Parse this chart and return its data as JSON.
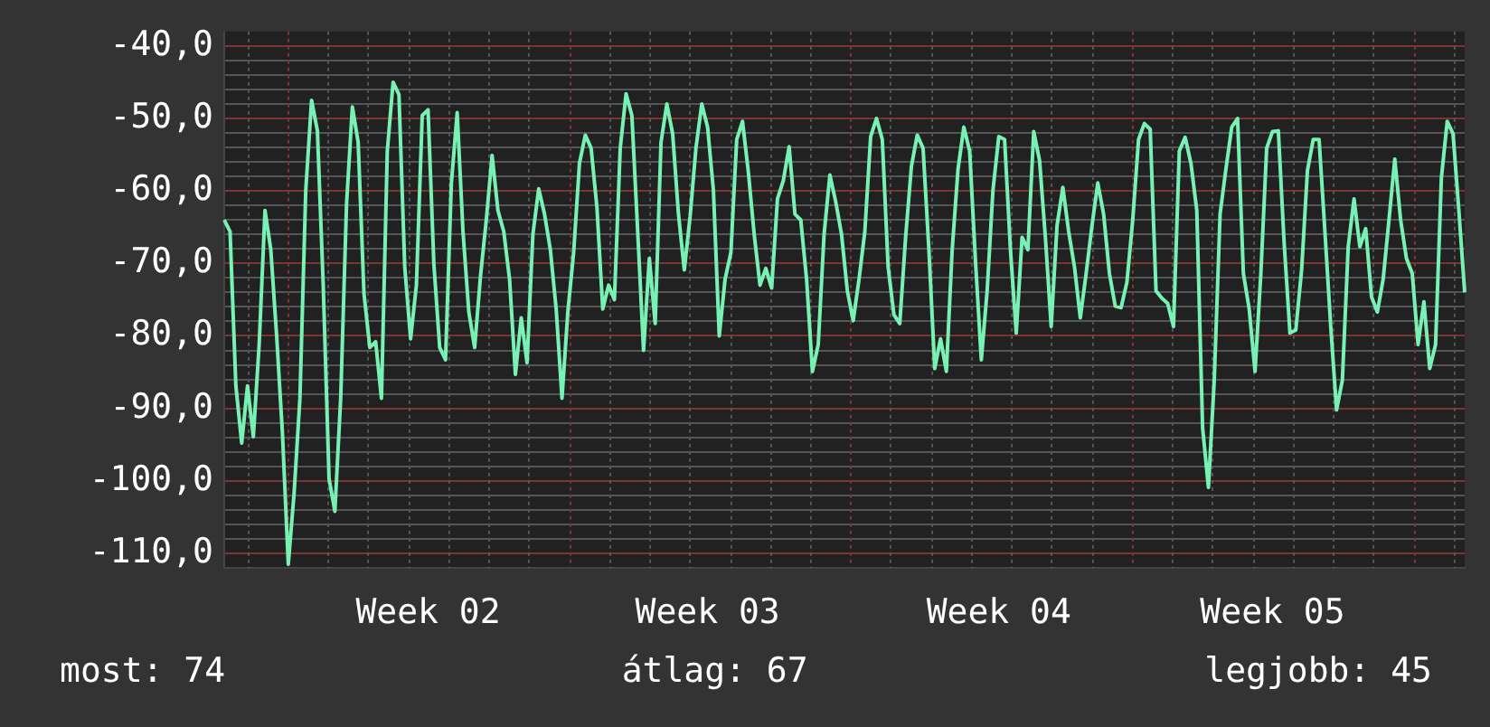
{
  "chart_data": {
    "type": "line",
    "color": "#77f2b4",
    "legend": false,
    "grid": true,
    "marker": "none",
    "line_style": "solid",
    "annotations": [
      "most: 74",
      "átlag: 67",
      "legjobb: 45"
    ],
    "categories": [
      null,
      null,
      null,
      null,
      null,
      null,
      null,
      null,
      null,
      null,
      null,
      null,
      null,
      null,
      null,
      null,
      null,
      null,
      null,
      null,
      null,
      null,
      null,
      null,
      null,
      null,
      null,
      null,
      null,
      null,
      null,
      null,
      null,
      null,
      null,
      "Week 02",
      null,
      null,
      null,
      null,
      null,
      null,
      null,
      null,
      null,
      null,
      null,
      null,
      null,
      null,
      null,
      null,
      null,
      null,
      null,
      null,
      null,
      null,
      null,
      null,
      null,
      null,
      null,
      null,
      null,
      null,
      null,
      null,
      null,
      null,
      null,
      null,
      null,
      null,
      null,
      null,
      null,
      null,
      null,
      null,
      null,
      null,
      null,
      "Week 03",
      null,
      null,
      null,
      null,
      null,
      null,
      null,
      null,
      null,
      null,
      null,
      null,
      null,
      null,
      null,
      null,
      null,
      null,
      null,
      null,
      null,
      null,
      null,
      null,
      null,
      null,
      null,
      null,
      null,
      null,
      null,
      null,
      null,
      null,
      null,
      null,
      null,
      null,
      null,
      null,
      null,
      null,
      null,
      null,
      null,
      null,
      null,
      null,
      null,
      "Week 04",
      null,
      null,
      null,
      null,
      null,
      null,
      null,
      null,
      null,
      null,
      null,
      null,
      null,
      null,
      null,
      null,
      null,
      null,
      null,
      null,
      null,
      null,
      null,
      null,
      null,
      null,
      null,
      null,
      null,
      null,
      null,
      null,
      null,
      null,
      null,
      null,
      null,
      null,
      null,
      null,
      null,
      null,
      null,
      null,
      null,
      null,
      "Week 05",
      null,
      null,
      null,
      null,
      null,
      null,
      null,
      null,
      null,
      null,
      null,
      null,
      null,
      null,
      null,
      null,
      null,
      null,
      null,
      null,
      null,
      null,
      null,
      null,
      null,
      null,
      null,
      null,
      null,
      null,
      null,
      null,
      null
    ],
    "ylim": [
      -112,
      -38
    ],
    "yticks": [
      {
        "value": -40,
        "label": "-40,0"
      },
      {
        "value": -42,
        "label": null
      },
      {
        "value": -44,
        "label": null
      },
      {
        "value": -46,
        "label": null
      },
      {
        "value": -48,
        "label": null
      },
      {
        "value": -50,
        "label": "-50,0"
      },
      {
        "value": -52,
        "label": null
      },
      {
        "value": -54,
        "label": null
      },
      {
        "value": -56,
        "label": null
      },
      {
        "value": -58,
        "label": null
      },
      {
        "value": -60,
        "label": "-60,0"
      },
      {
        "value": -62,
        "label": null
      },
      {
        "value": -64,
        "label": null
      },
      {
        "value": -66,
        "label": null
      },
      {
        "value": -68,
        "label": null
      },
      {
        "value": -70,
        "label": "-70,0"
      },
      {
        "value": -72,
        "label": null
      },
      {
        "value": -74,
        "label": null
      },
      {
        "value": -76,
        "label": null
      },
      {
        "value": -78,
        "label": null
      },
      {
        "value": -80,
        "label": "-80,0"
      },
      {
        "value": -82,
        "label": null
      },
      {
        "value": -84,
        "label": null
      },
      {
        "value": -86,
        "label": null
      },
      {
        "value": -88,
        "label": null
      },
      {
        "value": -90,
        "label": "-90,0"
      },
      {
        "value": -92,
        "label": null
      },
      {
        "value": -94,
        "label": null
      },
      {
        "value": -96,
        "label": null
      },
      {
        "value": -98,
        "label": null
      },
      {
        "value": -100,
        "label": "-100,0"
      },
      {
        "value": -102,
        "label": null
      },
      {
        "value": -104,
        "label": null
      },
      {
        "value": -106,
        "label": null
      },
      {
        "value": -108,
        "label": null
      },
      {
        "value": -110,
        "label": "-110,0"
      }
    ],
    "values": [
      -64,
      -65.6,
      -86.9,
      -94.8,
      -86.9,
      -93.9,
      -81.2,
      -62.7,
      -68.1,
      -80,
      -93.5,
      -111.5,
      -101.7,
      -88.6,
      -59.9,
      -47.5,
      -51.7,
      -73,
      -99.7,
      -104.2,
      -88.6,
      -61.9,
      -48.4,
      -53.3,
      -74.2,
      -81.6,
      -80.8,
      -88.6,
      -54.5,
      -45,
      -46.7,
      -70.5,
      -80.4,
      -73,
      -49.6,
      -48.8,
      -70.1,
      -81.6,
      -83.3,
      -59,
      -49.2,
      -65.6,
      -76.7,
      -81.6,
      -71.8,
      -64,
      -55.1,
      -62.7,
      -65.6,
      -72.2,
      -85.3,
      -77.5,
      -83.7,
      -66,
      -59.7,
      -63.2,
      -68.1,
      -76.3,
      -88.6,
      -76.7,
      -68.5,
      -56.2,
      -52.3,
      -54.1,
      -62.3,
      -76.3,
      -73,
      -75,
      -54.1,
      -46.6,
      -49.6,
      -65.6,
      -82,
      -69.3,
      -78.3,
      -53.3,
      -48,
      -52.1,
      -63.2,
      -70.9,
      -63.5,
      -54.1,
      -48,
      -51.2,
      -59.9,
      -80,
      -72.2,
      -68.5,
      -52.9,
      -50.4,
      -57.4,
      -66,
      -73,
      -70.7,
      -73.4,
      -61.1,
      -58.6,
      -53.9,
      -63.2,
      -64,
      -72.2,
      -84.9,
      -81.2,
      -66,
      -57.8,
      -61.5,
      -66,
      -73.8,
      -77.9,
      -72.2,
      -65.6,
      -52.5,
      -50,
      -52.9,
      -70.5,
      -77.1,
      -78.3,
      -66.4,
      -56.6,
      -52.3,
      -54.1,
      -68.1,
      -84.5,
      -80.4,
      -84.9,
      -68.1,
      -57,
      -51.2,
      -54.5,
      -69.7,
      -83.3,
      -73.8,
      -59.9,
      -52.5,
      -52.9,
      -68.1,
      -79.6,
      -66.4,
      -68.1,
      -51.8,
      -55.8,
      -66.4,
      -78.7,
      -64.8,
      -59.5,
      -65.6,
      -70.5,
      -77.5,
      -71.4,
      -64.8,
      -58.9,
      -63.2,
      -71.4,
      -75.9,
      -76.1,
      -72.6,
      -64,
      -52.9,
      -50.7,
      -51.5,
      -73.8,
      -74.8,
      -75.5,
      -78.7,
      -54.5,
      -52.6,
      -56.2,
      -62.7,
      -92.7,
      -100.9,
      -86.1,
      -63.2,
      -57,
      -51.2,
      -50,
      -71.4,
      -76.3,
      -84.9,
      -71.4,
      -54.1,
      -51.8,
      -51.7,
      -67.2,
      -79.6,
      -79.2,
      -70.9,
      -57.2,
      -52.9,
      -52.9,
      -65.6,
      -78.7,
      -90.2,
      -86.1,
      -67.7,
      -61.1,
      -67.7,
      -65.2,
      -74.6,
      -76.7,
      -72.2,
      -64,
      -55.6,
      -64,
      -69.3,
      -71.4,
      -81.2,
      -75.3,
      -84.5,
      -81.2,
      -58.2,
      -50.4,
      -52.1,
      -62.7,
      -74
    ]
  }
}
